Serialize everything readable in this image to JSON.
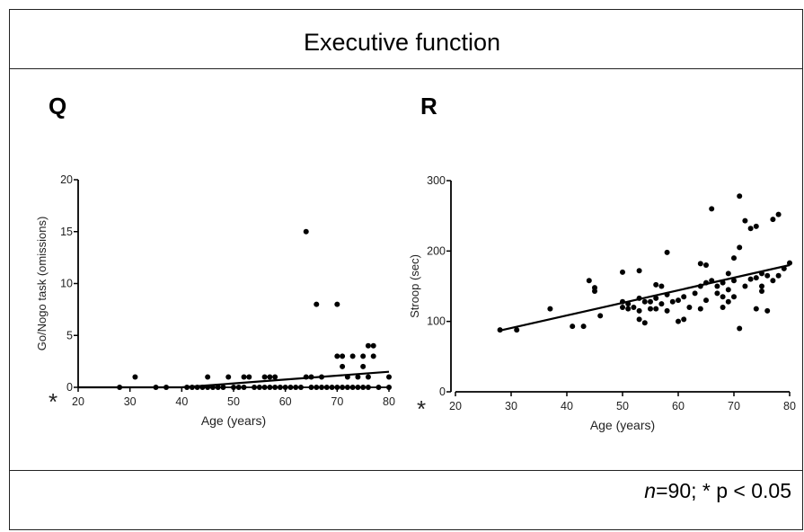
{
  "figure": {
    "title": "Executive function",
    "footnote_n": "n",
    "footnote_rest": "=90; * p < 0.05"
  },
  "panels": [
    {
      "letter": "Q",
      "star": "*"
    },
    {
      "letter": "R",
      "star": "*"
    }
  ],
  "chart_data": [
    {
      "type": "scatter",
      "panel": "Q",
      "xlabel": "Age (years)",
      "ylabel": "Go/Nogo task (omissions)",
      "xlim": [
        20,
        80
      ],
      "ylim": [
        0,
        20
      ],
      "xticks": [
        20,
        30,
        40,
        50,
        60,
        70,
        80
      ],
      "yticks": [
        0,
        5,
        10,
        15,
        20
      ],
      "trendline": [
        [
          20,
          0
        ],
        [
          40,
          0
        ],
        [
          80,
          1.5
        ]
      ],
      "points": [
        [
          28,
          0
        ],
        [
          31,
          1
        ],
        [
          35,
          0
        ],
        [
          37,
          0
        ],
        [
          41,
          0
        ],
        [
          42,
          0
        ],
        [
          43,
          0
        ],
        [
          44,
          0
        ],
        [
          45,
          0
        ],
        [
          45,
          1
        ],
        [
          46,
          0
        ],
        [
          47,
          0
        ],
        [
          48,
          0
        ],
        [
          49,
          1
        ],
        [
          50,
          0
        ],
        [
          51,
          0
        ],
        [
          52,
          0
        ],
        [
          52,
          1
        ],
        [
          53,
          1
        ],
        [
          54,
          0
        ],
        [
          55,
          0
        ],
        [
          56,
          0
        ],
        [
          56,
          1
        ],
        [
          57,
          0
        ],
        [
          57,
          1
        ],
        [
          58,
          0
        ],
        [
          58,
          1
        ],
        [
          59,
          0
        ],
        [
          60,
          0
        ],
        [
          61,
          0
        ],
        [
          62,
          0
        ],
        [
          63,
          0
        ],
        [
          64,
          15
        ],
        [
          64,
          1
        ],
        [
          65,
          0
        ],
        [
          65,
          1
        ],
        [
          66,
          8
        ],
        [
          66,
          0
        ],
        [
          67,
          0
        ],
        [
          67,
          1
        ],
        [
          68,
          0
        ],
        [
          69,
          0
        ],
        [
          70,
          8
        ],
        [
          70,
          3
        ],
        [
          70,
          0
        ],
        [
          71,
          3
        ],
        [
          71,
          2
        ],
        [
          71,
          0
        ],
        [
          72,
          1
        ],
        [
          72,
          0
        ],
        [
          73,
          0
        ],
        [
          73,
          3
        ],
        [
          74,
          0
        ],
        [
          74,
          1
        ],
        [
          75,
          0
        ],
        [
          75,
          2
        ],
        [
          75,
          3
        ],
        [
          76,
          4
        ],
        [
          76,
          0
        ],
        [
          76,
          1
        ],
        [
          77,
          4
        ],
        [
          77,
          3
        ],
        [
          78,
          0
        ],
        [
          80,
          1
        ],
        [
          80,
          0
        ]
      ]
    },
    {
      "type": "scatter",
      "panel": "R",
      "xlabel": "Age (years)",
      "ylabel": "Stroop (sec)",
      "xlim": [
        20,
        80
      ],
      "ylim": [
        0,
        300
      ],
      "xticks": [
        20,
        30,
        40,
        50,
        60,
        70,
        80
      ],
      "yticks": [
        0,
        100,
        200,
        300
      ],
      "trendline": [
        [
          28,
          87
        ],
        [
          80,
          180
        ]
      ],
      "points": [
        [
          28,
          88
        ],
        [
          31,
          88
        ],
        [
          37,
          118
        ],
        [
          41,
          93
        ],
        [
          43,
          93
        ],
        [
          44,
          158
        ],
        [
          45,
          148
        ],
        [
          45,
          143
        ],
        [
          46,
          108
        ],
        [
          50,
          128
        ],
        [
          50,
          120
        ],
        [
          50,
          170
        ],
        [
          51,
          118
        ],
        [
          51,
          125
        ],
        [
          52,
          120
        ],
        [
          53,
          172
        ],
        [
          53,
          133
        ],
        [
          53,
          115
        ],
        [
          53,
          103
        ],
        [
          54,
          98
        ],
        [
          54,
          128
        ],
        [
          55,
          128
        ],
        [
          55,
          118
        ],
        [
          56,
          118
        ],
        [
          56,
          152
        ],
        [
          56,
          133
        ],
        [
          57,
          125
        ],
        [
          57,
          150
        ],
        [
          58,
          138
        ],
        [
          58,
          115
        ],
        [
          58,
          198
        ],
        [
          59,
          128
        ],
        [
          60,
          130
        ],
        [
          60,
          100
        ],
        [
          61,
          103
        ],
        [
          61,
          135
        ],
        [
          62,
          120
        ],
        [
          63,
          140
        ],
        [
          64,
          182
        ],
        [
          64,
          150
        ],
        [
          64,
          118
        ],
        [
          65,
          180
        ],
        [
          65,
          155
        ],
        [
          65,
          130
        ],
        [
          66,
          260
        ],
        [
          66,
          158
        ],
        [
          67,
          150
        ],
        [
          67,
          140
        ],
        [
          68,
          135
        ],
        [
          68,
          120
        ],
        [
          68,
          155
        ],
        [
          69,
          168
        ],
        [
          69,
          145
        ],
        [
          69,
          128
        ],
        [
          70,
          190
        ],
        [
          70,
          135
        ],
        [
          70,
          158
        ],
        [
          71,
          278
        ],
        [
          71,
          205
        ],
        [
          71,
          90
        ],
        [
          72,
          243
        ],
        [
          72,
          150
        ],
        [
          73,
          232
        ],
        [
          73,
          160
        ],
        [
          74,
          118
        ],
        [
          74,
          162
        ],
        [
          74,
          235
        ],
        [
          75,
          150
        ],
        [
          75,
          168
        ],
        [
          75,
          143
        ],
        [
          76,
          165
        ],
        [
          76,
          115
        ],
        [
          77,
          245
        ],
        [
          77,
          158
        ],
        [
          78,
          252
        ],
        [
          78,
          165
        ],
        [
          79,
          175
        ],
        [
          80,
          183
        ]
      ]
    }
  ]
}
